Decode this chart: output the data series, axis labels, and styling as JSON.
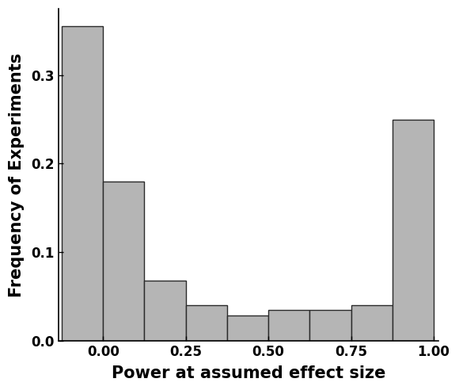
{
  "bar_lefts": [
    -0.125,
    0.0,
    0.125,
    0.25,
    0.375,
    0.5,
    0.625,
    0.75,
    0.875
  ],
  "bar_widths": [
    0.125,
    0.125,
    0.125,
    0.125,
    0.125,
    0.125,
    0.125,
    0.125,
    0.125
  ],
  "bar_heights": [
    0.355,
    0.18,
    0.068,
    0.04,
    0.028,
    0.035,
    0.035,
    0.04,
    0.25
  ],
  "bar_color": "#b5b5b5",
  "bar_edgecolor": "#2a2a2a",
  "xlabel": "Power at assumed effect size",
  "ylabel": "Frequency of Experiments",
  "xlim": [
    -0.135,
    1.015
  ],
  "ylim": [
    0.0,
    0.375
  ],
  "xticks": [
    0.0,
    0.25,
    0.5,
    0.75,
    1.0
  ],
  "yticks": [
    0.0,
    0.1,
    0.2,
    0.3
  ],
  "xlabel_fontsize": 15,
  "ylabel_fontsize": 15,
  "tick_fontsize": 12,
  "background_color": "#ffffff",
  "linewidth_bar": 1.0,
  "linewidth_spine": 1.2
}
